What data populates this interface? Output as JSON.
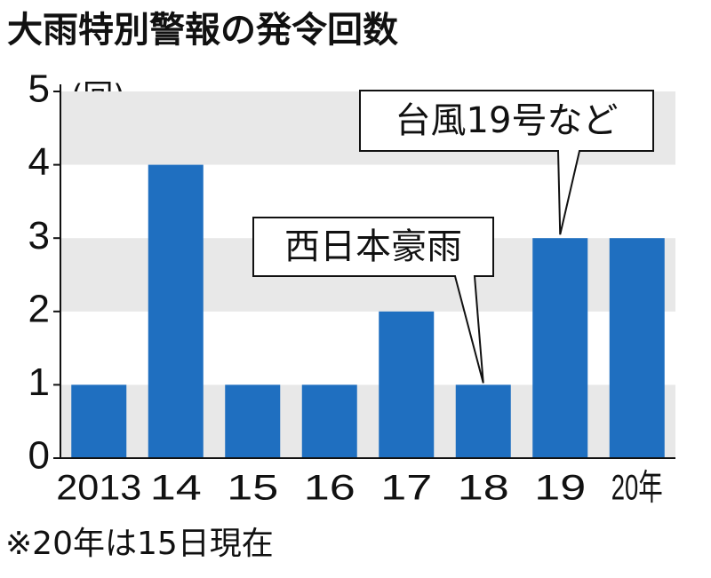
{
  "chart_data": {
    "type": "bar",
    "title": "大雨特別警報の発令回数",
    "y_label": "(回)",
    "categories": [
      "2013",
      "14",
      "15",
      "16",
      "17",
      "18",
      "19",
      "20年"
    ],
    "values": [
      1,
      4,
      1,
      1,
      2,
      1,
      3,
      3
    ],
    "color": "#1f6fc0",
    "ylim": [
      0,
      5
    ],
    "yticks": [
      0,
      1,
      2,
      3,
      4,
      5
    ],
    "annotations": [
      "西日本豪雨",
      "台風19号など"
    ],
    "footnote": "※20年は15日現在"
  }
}
